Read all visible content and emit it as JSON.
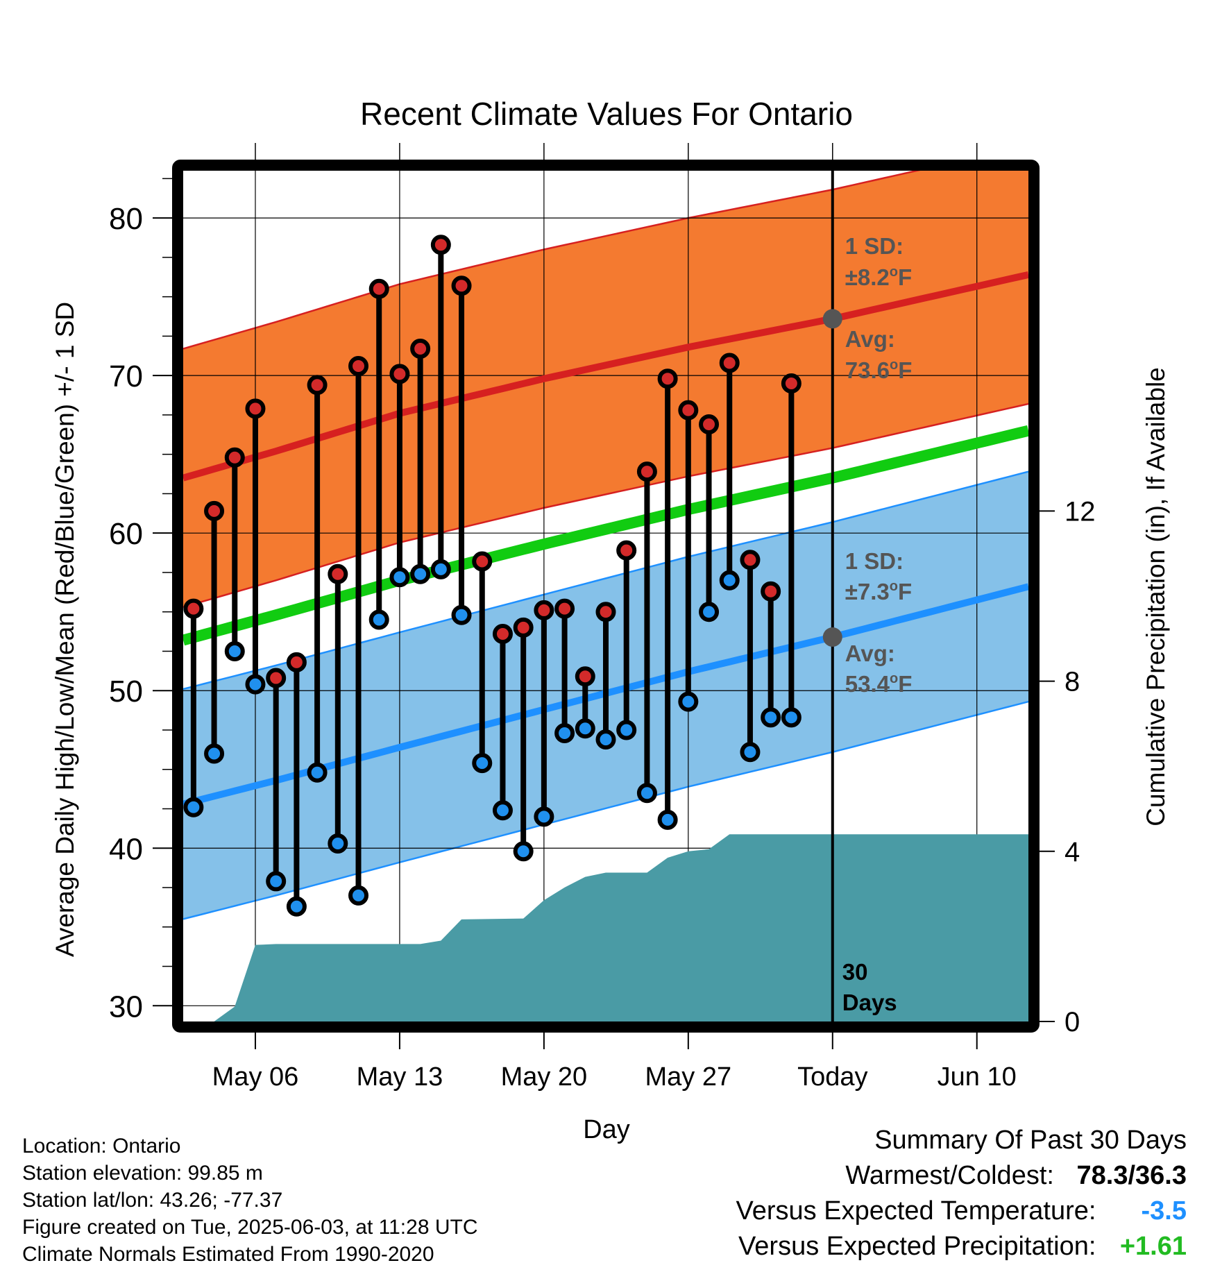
{
  "chart_data": {
    "type": "line",
    "title": "Recent Climate Values For Ontario",
    "xlabel": "Day",
    "ylabel": "Average Daily High/Low/Mean (Red/Blue/Green) +/- 1 SD",
    "y2label": "Cumulative Precipitation (in), If Available",
    "ylim": [
      29,
      83
    ],
    "y2lim": [
      0,
      20
    ],
    "yticks": [
      30,
      40,
      50,
      60,
      70,
      80
    ],
    "y2ticks": [
      0,
      4,
      8,
      12
    ],
    "xticks": [
      {
        "day": 6,
        "label": "May 06"
      },
      {
        "day": 13,
        "label": "May 13"
      },
      {
        "day": 20,
        "label": "May 20"
      },
      {
        "day": 27,
        "label": "May 27"
      },
      {
        "day": 34,
        "label": "Today"
      },
      {
        "day": 41,
        "label": "Jun 10"
      }
    ],
    "xlim": [
      2.5,
      43.5
    ],
    "today_day": 34,
    "normals": {
      "high_avg": [
        [
          2.5,
          63.5
        ],
        [
          7,
          65.2
        ],
        [
          13,
          67.6
        ],
        [
          20,
          69.8
        ],
        [
          27,
          71.8
        ],
        [
          34,
          73.6
        ],
        [
          43.5,
          76.4
        ]
      ],
      "low_avg": [
        [
          2.5,
          42.8
        ],
        [
          7,
          44.3
        ],
        [
          13,
          46.4
        ],
        [
          20,
          48.8
        ],
        [
          27,
          51.2
        ],
        [
          34,
          53.4
        ],
        [
          43.5,
          56.6
        ]
      ],
      "mean_avg": [
        [
          2.5,
          53.2
        ],
        [
          7,
          54.8
        ],
        [
          13,
          57.0
        ],
        [
          20,
          59.3
        ],
        [
          27,
          61.5
        ],
        [
          34,
          63.5
        ],
        [
          43.5,
          66.5
        ]
      ],
      "high_sd": 8.2,
      "low_sd": 7.3
    },
    "series": [
      {
        "name": "High",
        "color": "#cc2222",
        "values": [
          [
            3,
            55.2
          ],
          [
            4,
            61.4
          ],
          [
            5,
            64.8
          ],
          [
            6,
            67.9
          ],
          [
            7,
            50.8
          ],
          [
            8,
            51.8
          ],
          [
            9,
            69.4
          ],
          [
            10,
            57.4
          ],
          [
            11,
            70.6
          ],
          [
            12,
            75.5
          ],
          [
            13,
            70.1
          ],
          [
            14,
            71.7
          ],
          [
            15,
            78.3
          ],
          [
            16,
            75.7
          ],
          [
            17,
            58.2
          ],
          [
            18,
            53.6
          ],
          [
            19,
            54.0
          ],
          [
            20,
            55.1
          ],
          [
            21,
            55.2
          ],
          [
            22,
            50.9
          ],
          [
            23,
            55.0
          ],
          [
            24,
            58.9
          ],
          [
            25,
            63.9
          ],
          [
            26,
            69.8
          ],
          [
            27,
            67.8
          ],
          [
            28,
            66.9
          ],
          [
            29,
            70.8
          ],
          [
            30,
            58.3
          ],
          [
            31,
            56.3
          ],
          [
            32,
            69.5
          ]
        ]
      },
      {
        "name": "Low",
        "color": "#1e90ff",
        "values": [
          [
            3,
            42.6
          ],
          [
            4,
            46.0
          ],
          [
            5,
            52.5
          ],
          [
            6,
            50.4
          ],
          [
            7,
            37.9
          ],
          [
            8,
            36.3
          ],
          [
            9,
            44.8
          ],
          [
            10,
            40.3
          ],
          [
            11,
            37.0
          ],
          [
            12,
            54.5
          ],
          [
            13,
            57.2
          ],
          [
            14,
            57.4
          ],
          [
            15,
            57.7
          ],
          [
            16,
            54.8
          ],
          [
            17,
            45.4
          ],
          [
            18,
            42.4
          ],
          [
            19,
            39.8
          ],
          [
            20,
            42.0
          ],
          [
            21,
            47.3
          ],
          [
            22,
            47.6
          ],
          [
            23,
            46.9
          ],
          [
            24,
            47.5
          ],
          [
            25,
            43.5
          ],
          [
            26,
            41.8
          ],
          [
            27,
            49.3
          ],
          [
            28,
            55.0
          ],
          [
            29,
            57.0
          ],
          [
            30,
            46.1
          ],
          [
            31,
            48.3
          ],
          [
            32,
            48.3
          ]
        ]
      },
      {
        "name": "Cumulative Precipitation",
        "color": "#4a9ba5",
        "values": [
          [
            3,
            0.0
          ],
          [
            4,
            0.0
          ],
          [
            5,
            0.35
          ],
          [
            6,
            1.8
          ],
          [
            7,
            1.82
          ],
          [
            10,
            1.82
          ],
          [
            13,
            1.82
          ],
          [
            14,
            1.82
          ],
          [
            15,
            1.9
          ],
          [
            16,
            2.4
          ],
          [
            19,
            2.42
          ],
          [
            20,
            2.85
          ],
          [
            21,
            3.15
          ],
          [
            22,
            3.4
          ],
          [
            23,
            3.5
          ],
          [
            24,
            3.5
          ],
          [
            25,
            3.5
          ],
          [
            26,
            3.85
          ],
          [
            27,
            4.0
          ],
          [
            28,
            4.05
          ],
          [
            29,
            4.4
          ],
          [
            33,
            4.4
          ],
          [
            43.5,
            4.4
          ]
        ]
      }
    ],
    "annotations": {
      "high_sd_label": "1 SD:",
      "high_sd_value": "±8.2",
      "high_avg_label": "Avg:",
      "high_avg_value": "73.6",
      "low_sd_label": "1 SD:",
      "low_sd_value": "±7.3",
      "low_avg_label": "Avg:",
      "low_avg_value": "53.4",
      "unit": "F",
      "days_num": "30",
      "days_word": "Days"
    },
    "colors": {
      "high_band": "#f47a30",
      "high_line": "#d62020",
      "low_band": "#85c1e9",
      "low_line": "#1e90ff",
      "mean_line": "#11cc11",
      "precip": "#4a9ba5",
      "annot": "#555555",
      "high_marker": "#d32a2a",
      "low_marker": "#2090ee"
    },
    "grid": true,
    "legend": "none"
  },
  "footer": {
    "location": "Location: Ontario",
    "elevation": "Station elevation: 99.85 m",
    "latlon": "Station lat/lon: 43.26; -77.37",
    "created": "Figure created on Tue, 2025-06-03, at 11:28 UTC",
    "normals": "Climate Normals Estimated From 1990-2020",
    "summary_title": "Summary Of Past 30 Days",
    "warmest_label": "Warmest/Coldest:",
    "warmest_value": "78.3/36.3",
    "temp_label": "Versus Expected Temperature:",
    "temp_value": "-3.5",
    "temp_color": "#1e90ff",
    "precip_label": "Versus Expected Precipitation:",
    "precip_value": "+1.61",
    "precip_color": "#22bb22"
  }
}
